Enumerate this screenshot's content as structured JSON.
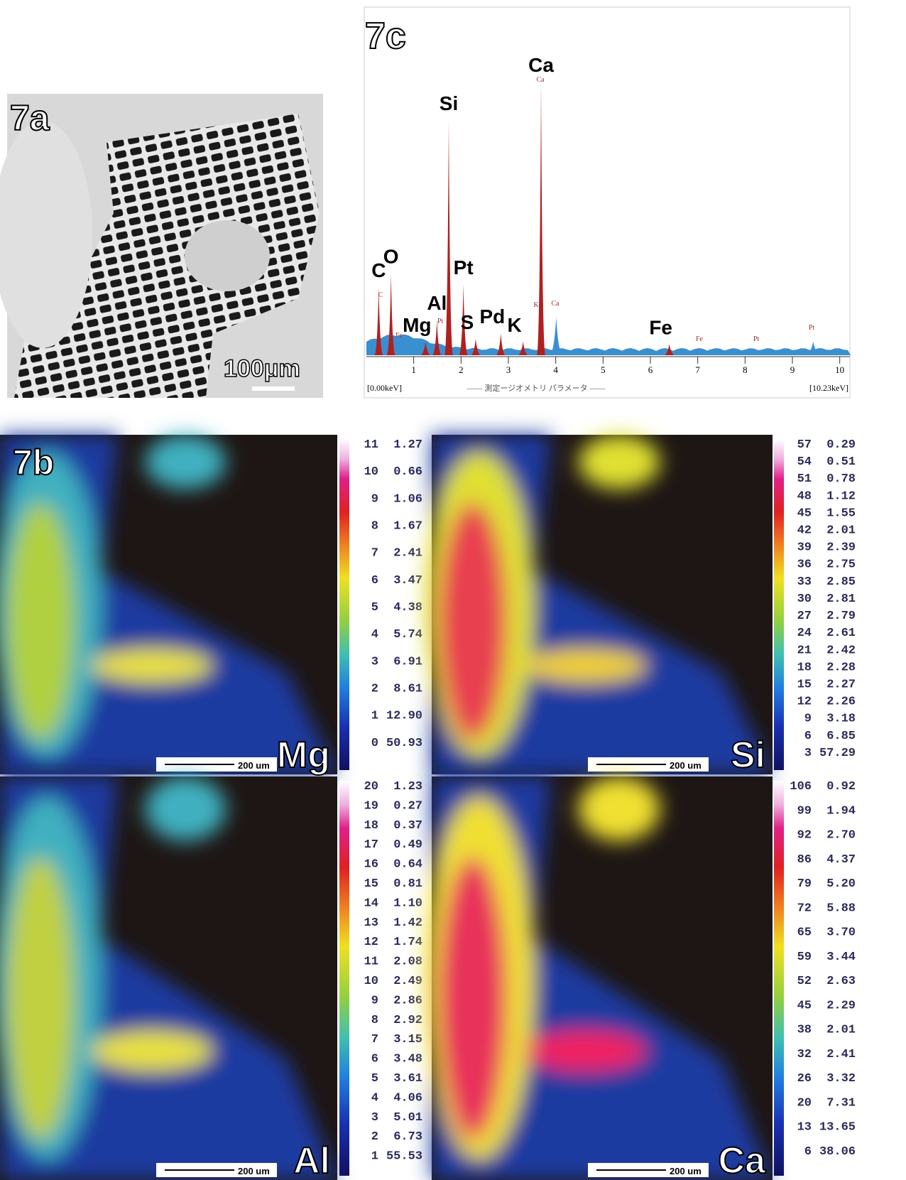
{
  "panel_a": {
    "label": "7a",
    "scale": "100μm"
  },
  "panel_c": {
    "label": "7c",
    "left_range": "[0.00keV]",
    "right_range": "[10.23keV]",
    "caption": "—— 測定ージオメトリ パラメータ ——",
    "xlim": [
      0,
      10.23
    ],
    "xticks": [
      1,
      2,
      3,
      4,
      5,
      6,
      7,
      8,
      9,
      10
    ],
    "peaks": [
      {
        "label": "C",
        "energy": 0.26,
        "height": 25
      },
      {
        "label": "O",
        "energy": 0.52,
        "height": 30
      },
      {
        "label": "Mg",
        "energy": 1.25,
        "height": 5
      },
      {
        "label": "Al",
        "energy": 1.49,
        "height": 13
      },
      {
        "label": "Si",
        "energy": 1.74,
        "height": 86
      },
      {
        "label": "Pt",
        "energy": 2.05,
        "height": 26
      },
      {
        "label": "S",
        "energy": 2.31,
        "height": 6
      },
      {
        "label": "Pd",
        "energy": 2.84,
        "height": 8
      },
      {
        "label": "K",
        "energy": 3.31,
        "height": 5
      },
      {
        "label": "Ca",
        "energy": 3.69,
        "height": 100
      },
      {
        "label": "Fe",
        "energy": 6.4,
        "height": 4
      }
    ],
    "minor_peaks": [
      {
        "energy": 4.01,
        "height": 14
      },
      {
        "energy": 9.44,
        "height": 5
      }
    ],
    "small_labels": [
      "C",
      "Fe",
      "Pt",
      "K",
      "Ca",
      "Ca",
      "Fe",
      "Pt",
      "Pt"
    ]
  },
  "panel_b": {
    "label": "7b",
    "scale": "200 um",
    "maps": [
      {
        "element": "Mg",
        "levels": [
          [
            "11",
            "1.27"
          ],
          [
            "10",
            "0.66"
          ],
          [
            "9",
            "1.06"
          ],
          [
            "8",
            "1.67"
          ],
          [
            "7",
            "2.41"
          ],
          [
            "6",
            "3.47"
          ],
          [
            "5",
            "4.38"
          ],
          [
            "4",
            "5.74"
          ],
          [
            "3",
            "6.91"
          ],
          [
            "2",
            "8.61"
          ],
          [
            "1",
            "12.90"
          ],
          [
            "0",
            "50.93"
          ]
        ]
      },
      {
        "element": "Si",
        "levels": [
          [
            "57",
            "0.29"
          ],
          [
            "54",
            "0.51"
          ],
          [
            "51",
            "0.78"
          ],
          [
            "48",
            "1.12"
          ],
          [
            "45",
            "1.55"
          ],
          [
            "42",
            "2.01"
          ],
          [
            "39",
            "2.39"
          ],
          [
            "36",
            "2.75"
          ],
          [
            "33",
            "2.85"
          ],
          [
            "30",
            "2.81"
          ],
          [
            "27",
            "2.79"
          ],
          [
            "24",
            "2.61"
          ],
          [
            "21",
            "2.42"
          ],
          [
            "18",
            "2.28"
          ],
          [
            "15",
            "2.27"
          ],
          [
            "12",
            "2.26"
          ],
          [
            "9",
            "3.18"
          ],
          [
            "6",
            "6.85"
          ],
          [
            "3",
            "57.29"
          ]
        ]
      },
      {
        "element": "Al",
        "levels": [
          [
            "20",
            "1.23"
          ],
          [
            "19",
            "0.27"
          ],
          [
            "18",
            "0.37"
          ],
          [
            "17",
            "0.49"
          ],
          [
            "16",
            "0.64"
          ],
          [
            "15",
            "0.81"
          ],
          [
            "14",
            "1.10"
          ],
          [
            "13",
            "1.42"
          ],
          [
            "12",
            "1.74"
          ],
          [
            "11",
            "2.08"
          ],
          [
            "10",
            "2.49"
          ],
          [
            "9",
            "2.86"
          ],
          [
            "8",
            "2.92"
          ],
          [
            "7",
            "3.15"
          ],
          [
            "6",
            "3.48"
          ],
          [
            "5",
            "3.61"
          ],
          [
            "4",
            "4.06"
          ],
          [
            "3",
            "5.01"
          ],
          [
            "2",
            "6.73"
          ],
          [
            "1",
            "55.53"
          ]
        ]
      },
      {
        "element": "Ca",
        "levels": [
          [
            "106",
            "0.92"
          ],
          [
            "99",
            "1.94"
          ],
          [
            "92",
            "2.70"
          ],
          [
            "86",
            "4.37"
          ],
          [
            "79",
            "5.20"
          ],
          [
            "72",
            "5.88"
          ],
          [
            "65",
            "3.70"
          ],
          [
            "59",
            "3.44"
          ],
          [
            "52",
            "2.63"
          ],
          [
            "45",
            "2.29"
          ],
          [
            "38",
            "2.01"
          ],
          [
            "32",
            "2.41"
          ],
          [
            "26",
            "3.32"
          ],
          [
            "20",
            "7.31"
          ],
          [
            "13",
            "13.65"
          ],
          [
            "6",
            "38.06"
          ]
        ]
      }
    ]
  }
}
